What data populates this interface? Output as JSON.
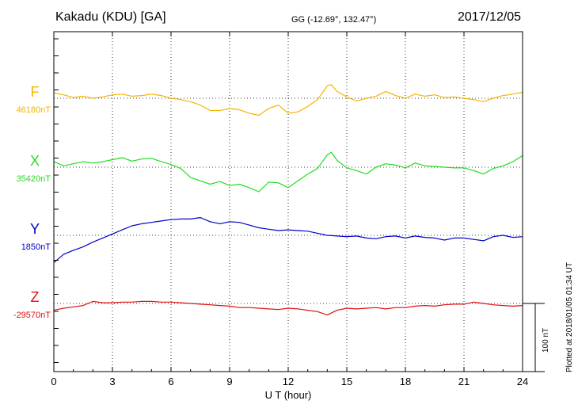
{
  "header": {
    "station": "Kakadu (KDU)  [GA]",
    "coords": "GG (-12.69°, 132.47°)",
    "date": "2017/12/05"
  },
  "scale_label": "100 nT",
  "plotted_note": "Plotted at 2018/01/05 01:34 UT",
  "chart_data": {
    "type": "line",
    "title": "Kakadu (KDU)  [GA]",
    "xlabel": "U T (hour)",
    "ylabel": "",
    "xlim": [
      0,
      24
    ],
    "xticks": [
      "0",
      "3",
      "6",
      "9",
      "12",
      "15",
      "18",
      "21",
      "24"
    ],
    "grid": true,
    "scale_bar_nT": 100,
    "series": [
      {
        "name": "F",
        "baseline_label": "46180nT",
        "color": "#f5b400",
        "baseline_nT": 46180,
        "x": [
          0,
          0.5,
          1,
          1.5,
          2,
          2.5,
          3,
          3.5,
          4,
          4.5,
          5,
          5.5,
          6,
          6.5,
          7,
          7.5,
          8,
          8.5,
          9,
          9.5,
          10,
          10.5,
          11,
          11.5,
          12,
          12.5,
          13,
          13.5,
          14,
          14.2,
          14.5,
          15,
          15.5,
          16,
          16.5,
          17,
          17.5,
          18,
          18.5,
          19,
          19.5,
          20,
          20.5,
          21,
          21.5,
          22,
          22.5,
          23,
          23.5,
          24
        ],
        "values": [
          46188,
          46185,
          46181,
          46183,
          46180,
          46182,
          46185,
          46186,
          46183,
          46184,
          46186,
          46184,
          46180,
          46178,
          46175,
          46170,
          46162,
          46162,
          46165,
          46163,
          46158,
          46155,
          46165,
          46170,
          46158,
          46160,
          46168,
          46178,
          46198,
          46200,
          46190,
          46182,
          46176,
          46180,
          46183,
          46190,
          46184,
          46180,
          46186,
          46183,
          46185,
          46181,
          46182,
          46180,
          46178,
          46175,
          46180,
          46184,
          46186,
          46189
        ]
      },
      {
        "name": "X",
        "baseline_label": "35420nT",
        "color": "#22dd22",
        "baseline_nT": 35420,
        "x": [
          0,
          0.5,
          1,
          1.5,
          2,
          2.5,
          3,
          3.5,
          4,
          4.5,
          5,
          5.5,
          6,
          6.5,
          7,
          7.5,
          8,
          8.5,
          9,
          9.5,
          10,
          10.5,
          11,
          11.5,
          12,
          12.5,
          13,
          13.5,
          14,
          14.2,
          14.5,
          15,
          15.5,
          16,
          16.5,
          17,
          17.5,
          18,
          18.5,
          19,
          19.5,
          20,
          20.5,
          21,
          21.5,
          22,
          22.5,
          23,
          23.5,
          24
        ],
        "values": [
          35428,
          35422,
          35425,
          35428,
          35426,
          35428,
          35431,
          35434,
          35429,
          35432,
          35433,
          35428,
          35424,
          35418,
          35405,
          35400,
          35395,
          35399,
          35393,
          35395,
          35390,
          35384,
          35398,
          35397,
          35390,
          35400,
          35410,
          35418,
          35438,
          35442,
          35430,
          35419,
          35415,
          35410,
          35420,
          35425,
          35423,
          35419,
          35426,
          35422,
          35421,
          35420,
          35419,
          35419,
          35415,
          35410,
          35418,
          35422,
          35428,
          35437
        ]
      },
      {
        "name": "Y",
        "baseline_label": "1850nT",
        "color": "#0000cc",
        "baseline_nT": 1850,
        "x": [
          0,
          0.5,
          1,
          1.5,
          2,
          2.5,
          3,
          3.5,
          4,
          4.5,
          5,
          5.5,
          6,
          6.5,
          7,
          7.5,
          8,
          8.5,
          9,
          9.5,
          10,
          10.5,
          11,
          11.5,
          12,
          12.5,
          13,
          13.5,
          14,
          14.5,
          15,
          15.5,
          16,
          16.5,
          17,
          17.5,
          18,
          18.5,
          19,
          19.5,
          20,
          20.5,
          21,
          21.5,
          22,
          22.5,
          23,
          23.5,
          24
        ],
        "values": [
          1810,
          1822,
          1828,
          1833,
          1840,
          1846,
          1852,
          1858,
          1864,
          1867,
          1869,
          1871,
          1873,
          1874,
          1874,
          1876,
          1870,
          1867,
          1870,
          1869,
          1865,
          1861,
          1859,
          1857,
          1858,
          1857,
          1856,
          1853,
          1850,
          1849,
          1848,
          1849,
          1846,
          1845,
          1848,
          1849,
          1846,
          1849,
          1847,
          1846,
          1843,
          1846,
          1846,
          1844,
          1842,
          1848,
          1850,
          1847,
          1848
        ]
      },
      {
        "name": "Z",
        "baseline_label": "-29570nT",
        "color": "#dd1111",
        "baseline_nT": -29570,
        "x": [
          0,
          0.5,
          1,
          1.5,
          2,
          2.5,
          3,
          3.5,
          4,
          4.5,
          5,
          5.5,
          6,
          6.5,
          7,
          7.5,
          8,
          8.5,
          9,
          9.5,
          10,
          10.5,
          11,
          11.5,
          12,
          12.5,
          13,
          13.5,
          14,
          14.5,
          15,
          15.5,
          16,
          16.5,
          17,
          17.5,
          18,
          18.5,
          19,
          19.5,
          20,
          20.5,
          21,
          21.5,
          22,
          22.5,
          23,
          23.5,
          24
        ],
        "values": [
          -29580,
          -29577,
          -29575,
          -29573,
          -29567,
          -29569,
          -29569,
          -29568,
          -29568,
          -29567,
          -29567,
          -29568,
          -29568,
          -29569,
          -29570,
          -29571,
          -29572,
          -29573,
          -29574,
          -29576,
          -29576,
          -29577,
          -29578,
          -29579,
          -29577,
          -29578,
          -29580,
          -29582,
          -29587,
          -29580,
          -29577,
          -29578,
          -29577,
          -29576,
          -29578,
          -29576,
          -29576,
          -29574,
          -29573,
          -29574,
          -29572,
          -29571,
          -29571,
          -29568,
          -29570,
          -29572,
          -29573,
          -29574,
          -29573
        ]
      }
    ]
  }
}
